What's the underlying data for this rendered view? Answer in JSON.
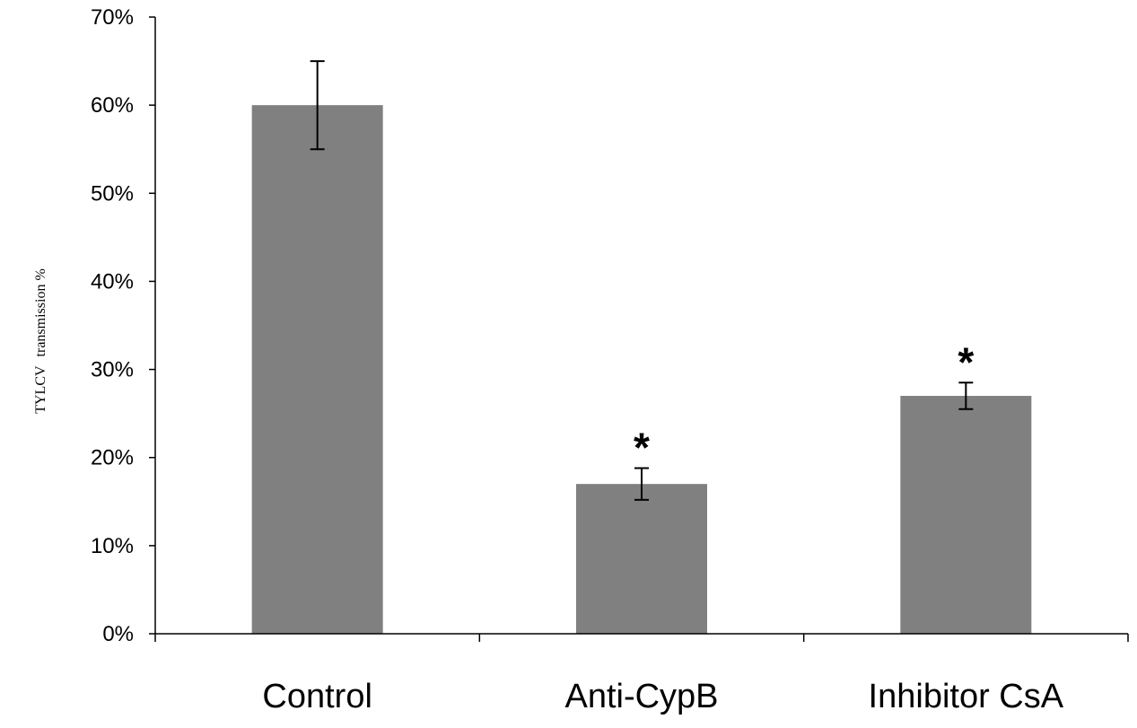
{
  "chart_data": {
    "type": "bar",
    "title": "",
    "xlabel": "",
    "ylabel": "TYLCV transmission %",
    "ylabel_parts": {
      "strong": "TYLCV",
      "rest": "transmission %"
    },
    "ylim": [
      0,
      70
    ],
    "yticks": [
      0,
      10,
      20,
      30,
      40,
      50,
      60,
      70
    ],
    "ytick_labels": [
      "0%",
      "10%",
      "20%",
      "30%",
      "40%",
      "50%",
      "60%",
      "70%"
    ],
    "categories": [
      "Control",
      "Anti-CypB",
      "Inhibitor CsA"
    ],
    "values": [
      60,
      17,
      27
    ],
    "errors": [
      5,
      1.8,
      1.5
    ],
    "significance": [
      "",
      "*",
      "*"
    ],
    "bar_color": "#808080",
    "axis_color": "#000000",
    "grid": false
  }
}
